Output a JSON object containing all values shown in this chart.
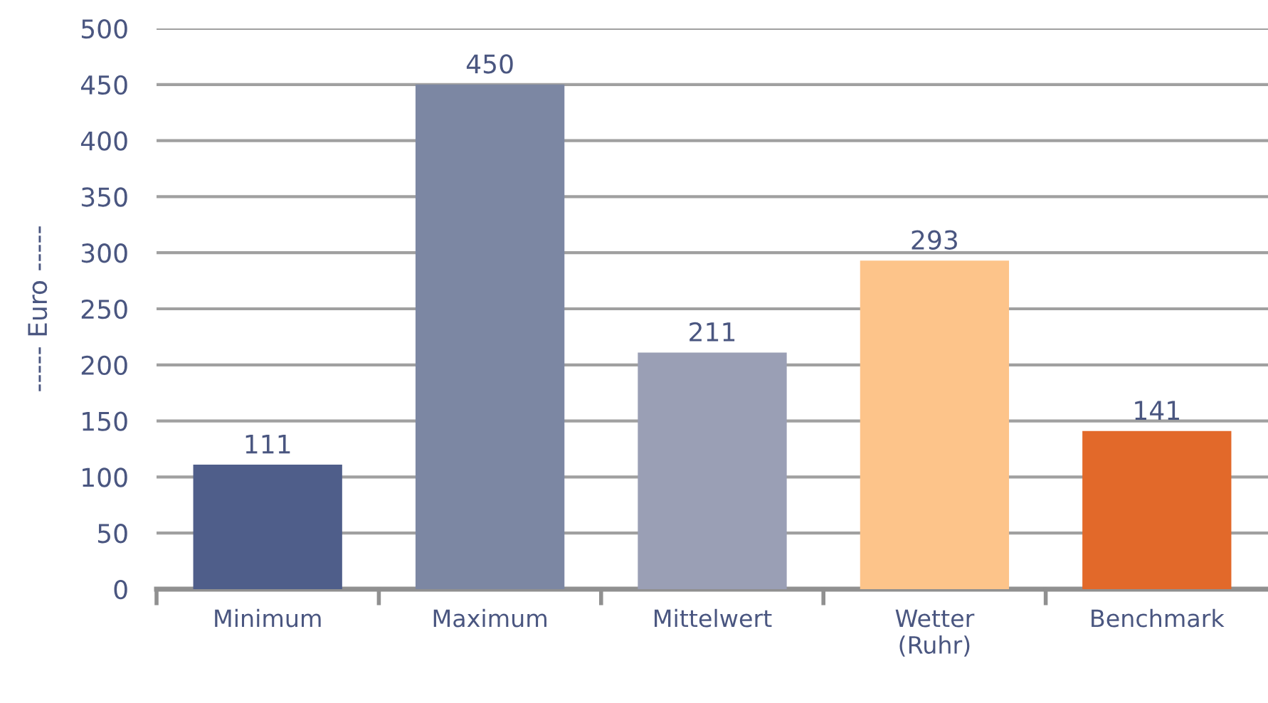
{
  "chart_data": {
    "type": "bar",
    "ylabel": "----- Euro -----",
    "categories": [
      "Minimum",
      "Maximum",
      "Mittelwert",
      "Wetter\n(Ruhr)",
      "Benchmark"
    ],
    "values": [
      111,
      450,
      211,
      293,
      141
    ],
    "colors": [
      "#4f5e8a",
      "#7c87a3",
      "#9a9fb5",
      "#fdc48a",
      "#e2692a"
    ],
    "ylim": [
      0,
      500
    ],
    "yticks": [
      0,
      50,
      100,
      150,
      200,
      250,
      300,
      350,
      400,
      450,
      500
    ],
    "grid": "y",
    "data_labels": true
  }
}
